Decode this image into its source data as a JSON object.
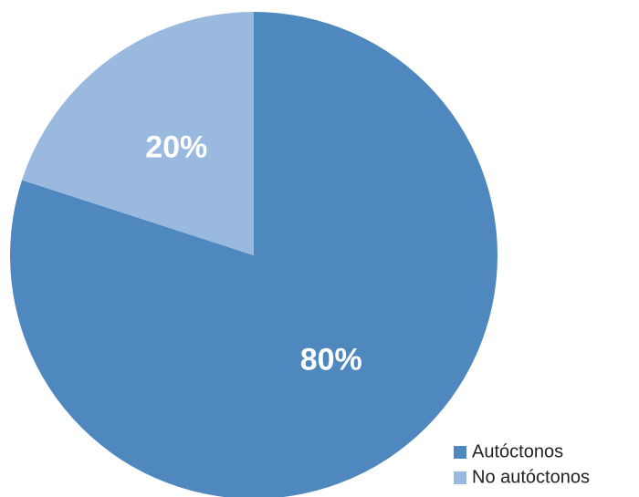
{
  "chart_data": {
    "type": "pie",
    "categories": [
      "Autóctonos",
      "No autóctonos"
    ],
    "values": [
      80,
      20
    ],
    "value_labels": [
      "80%",
      "20%"
    ],
    "colors": [
      "#4f88bf",
      "#99b9de"
    ],
    "legend": "bottom-right"
  }
}
